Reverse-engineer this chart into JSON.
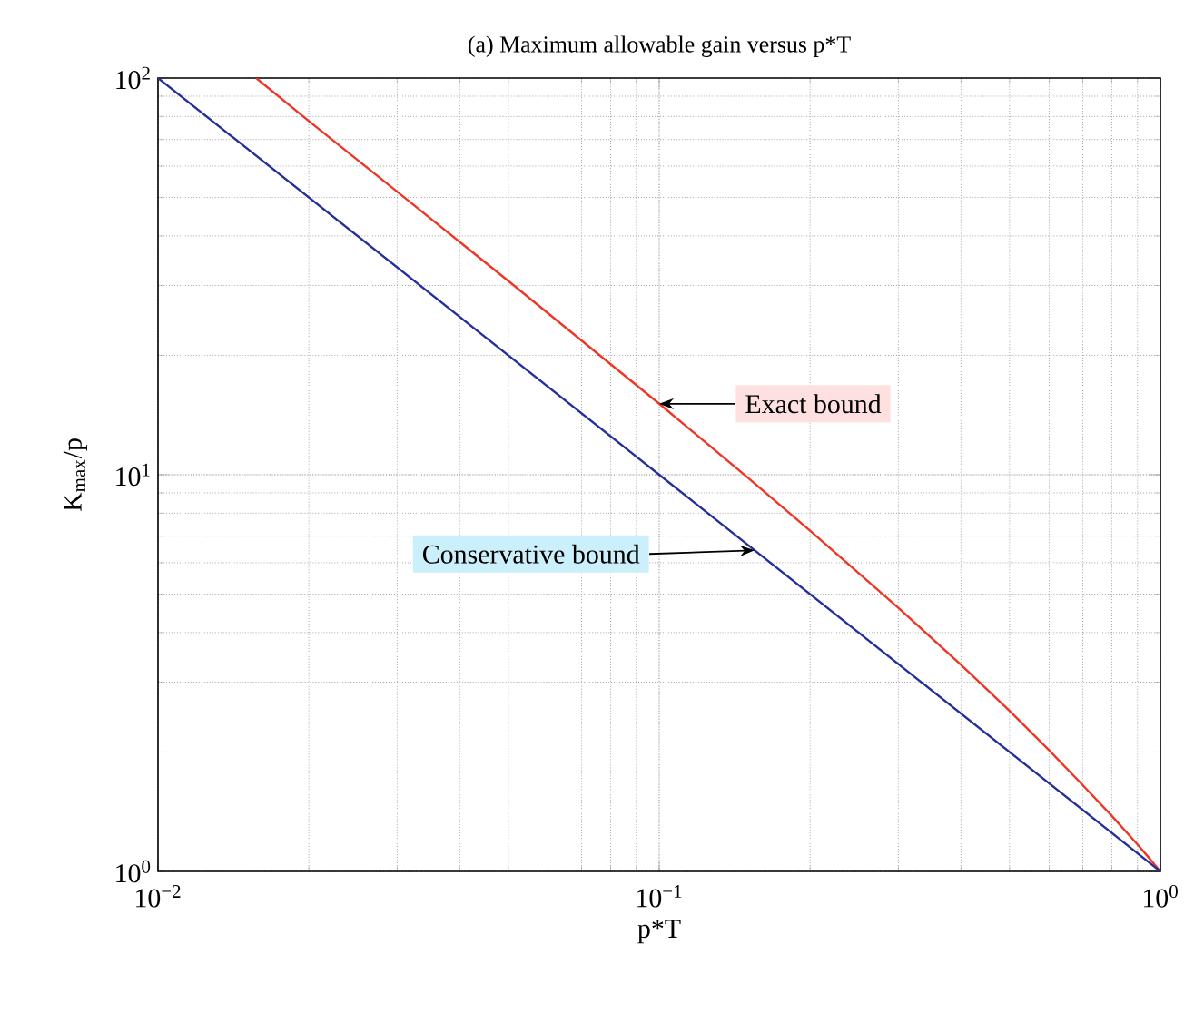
{
  "chart_data": {
    "type": "line",
    "title": "(a) Maximum allowable gain versus p*T",
    "xlabel": "p*T",
    "ylabel": "K$_{max}$/p",
    "log": "xy",
    "grid": true,
    "marker": "none",
    "line_style": "solid",
    "xlim": [
      0.01,
      1
    ],
    "ylim": [
      1,
      100
    ],
    "xticks": [
      {
        "value": 0.01,
        "label": "10$^{−2}$"
      },
      {
        "value": 0.1,
        "label": "10$^{−1}$"
      },
      {
        "value": 1,
        "label": "10$^{0}$"
      }
    ],
    "yticks": [
      {
        "value": 1,
        "label": "10$^{0}$"
      },
      {
        "value": 10,
        "label": "10$^{1}$"
      },
      {
        "value": 100,
        "label": "10$^{2}$"
      }
    ],
    "series": [
      {
        "color": "#f03525",
        "x": [
          0.0157,
          0.02,
          0.03,
          0.05,
          0.1,
          0.15,
          0.2,
          0.3,
          0.4,
          0.5,
          0.6,
          0.7,
          0.8,
          0.9,
          0.95,
          1
        ],
        "values": [
          100,
          77.9,
          51.7,
          30.8,
          15.1,
          9.85,
          7.23,
          4.62,
          3.32,
          2.54,
          2.02,
          1.65,
          1.38,
          1.17,
          1.08,
          1
        ]
      },
      {
        "color": "#23309a",
        "x": [
          0.01,
          0.1,
          1
        ],
        "values": [
          100,
          10,
          1
        ]
      }
    ],
    "annotations": [
      {
        "text": "Exact bound",
        "x": 0.1,
        "y": 15.1
      },
      {
        "text": "Conservative bound",
        "x": 0.155,
        "y": 6.45
      }
    ]
  }
}
